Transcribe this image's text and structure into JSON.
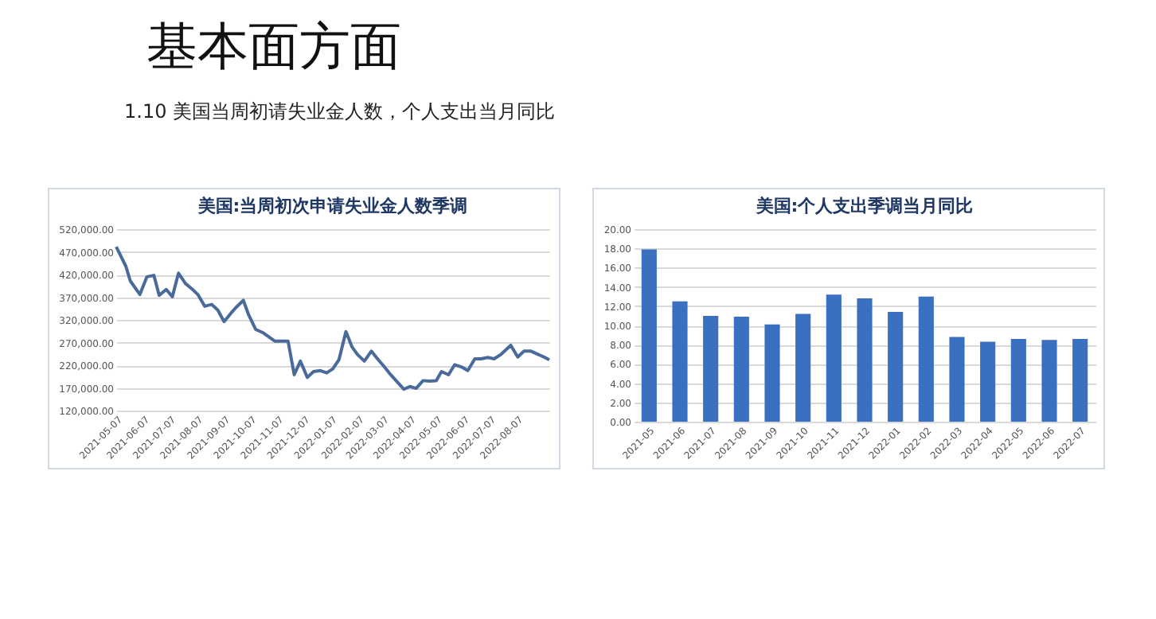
{
  "chart_data": [
    {
      "type": "other",
      "title": "基本面方面",
      "subtitle": "1.10 美国当周初请失业金人数，个人支出当月同比"
    },
    {
      "type": "line",
      "title": "美国:当周初次申请失业金人数季调",
      "color": "#4a6a9a",
      "grid": "y",
      "xlim": [
        "2021-05-07",
        "2022-09-13"
      ],
      "xticks": [
        "2021-05-07",
        "2021-06-07",
        "2021-07-07",
        "2021-08-07",
        "2021-09-07",
        "2021-10-07",
        "2021-11-07",
        "2021-12-07",
        "2022-01-07",
        "2022-02-07",
        "2022-03-07",
        "2022-04-07",
        "2022-05-07",
        "2022-06-07",
        "2022-07-07",
        "2022-08-07"
      ],
      "ylim": [
        120000,
        520000
      ],
      "yticks": [
        {
          "value": 120000,
          "label": "120,000.00"
        },
        {
          "value": 170000,
          "label": "170,000.00"
        },
        {
          "value": 220000,
          "label": "220,000.00"
        },
        {
          "value": 270000,
          "label": "270,000.00"
        },
        {
          "value": 320000,
          "label": "320,000.00"
        },
        {
          "value": 370000,
          "label": "370,000.00"
        },
        {
          "value": 420000,
          "label": "420,000.00"
        },
        {
          "value": 470000,
          "label": "470,000.00"
        },
        {
          "value": 520000,
          "label": "520,000.00"
        }
      ],
      "x": [
        "2021-05-07",
        "2021-05-18",
        "2021-05-23",
        "2021-06-03",
        "2021-06-11",
        "2021-06-19",
        "2021-06-25",
        "2021-07-03",
        "2021-07-10",
        "2021-07-17",
        "2021-07-25",
        "2021-08-02",
        "2021-08-08",
        "2021-08-16",
        "2021-08-24",
        "2021-08-31",
        "2021-09-07",
        "2021-09-15",
        "2021-09-21",
        "2021-09-29",
        "2021-10-05",
        "2021-10-13",
        "2021-10-21",
        "2021-10-29",
        "2021-11-04",
        "2021-11-12",
        "2021-11-19",
        "2021-11-26",
        "2021-12-03",
        "2021-12-11",
        "2021-12-18",
        "2021-12-26",
        "2022-01-02",
        "2022-01-09",
        "2022-01-16",
        "2022-01-24",
        "2022-01-31",
        "2022-02-06",
        "2022-02-14",
        "2022-02-22",
        "2022-03-01",
        "2022-03-09",
        "2022-03-16",
        "2022-03-24",
        "2022-03-31",
        "2022-04-07",
        "2022-04-14",
        "2022-04-22",
        "2022-04-29",
        "2022-05-07",
        "2022-05-13",
        "2022-05-21",
        "2022-05-28",
        "2022-06-05",
        "2022-06-12",
        "2022-06-20",
        "2022-06-27",
        "2022-07-05",
        "2022-07-12",
        "2022-07-20",
        "2022-07-31",
        "2022-08-08",
        "2022-08-15",
        "2022-08-23",
        "2022-08-31",
        "2022-09-07",
        "2022-09-13"
      ],
      "values": [
        481000,
        438000,
        406000,
        376000,
        415000,
        418000,
        374000,
        387000,
        371000,
        423000,
        400000,
        387000,
        376000,
        350000,
        354000,
        341000,
        316000,
        335000,
        348000,
        363000,
        331000,
        299000,
        292000,
        281000,
        273000,
        273000,
        273000,
        199000,
        229000,
        193000,
        206000,
        208000,
        203000,
        212000,
        232000,
        294000,
        260000,
        244000,
        229000,
        251000,
        234000,
        216000,
        199000,
        182000,
        167000,
        173000,
        169000,
        186000,
        185000,
        186000,
        206000,
        199000,
        221000,
        216000,
        208000,
        234000,
        234000,
        237000,
        234000,
        244000,
        264000,
        238000,
        251000,
        251000,
        244000,
        238000,
        232000
      ]
    },
    {
      "type": "bar",
      "title": "美国:个人支出季调当月同比",
      "color": "#3b6fc0",
      "grid": "y",
      "categories": [
        "2021-05",
        "2021-06",
        "2021-07",
        "2021-08",
        "2021-09",
        "2021-10",
        "2021-11",
        "2021-12",
        "2022-01",
        "2022-02",
        "2022-03",
        "2022-04",
        "2022-05",
        "2022-06",
        "2022-07"
      ],
      "values": [
        17.9,
        12.5,
        11.0,
        10.9,
        10.1,
        11.2,
        13.2,
        12.8,
        11.4,
        13.0,
        8.8,
        8.3,
        8.6,
        8.5,
        8.6
      ],
      "ylim": [
        0,
        20
      ],
      "yticks": [
        {
          "value": 0,
          "label": "0.00"
        },
        {
          "value": 2,
          "label": "2.00"
        },
        {
          "value": 4,
          "label": "4.00"
        },
        {
          "value": 6,
          "label": "6.00"
        },
        {
          "value": 8,
          "label": "8.00"
        },
        {
          "value": 10,
          "label": "10.00"
        },
        {
          "value": 12,
          "label": "12.00"
        },
        {
          "value": 14,
          "label": "14.00"
        },
        {
          "value": 16,
          "label": "16.00"
        },
        {
          "value": 18,
          "label": "18.00"
        },
        {
          "value": 20,
          "label": "20.00"
        }
      ]
    }
  ]
}
